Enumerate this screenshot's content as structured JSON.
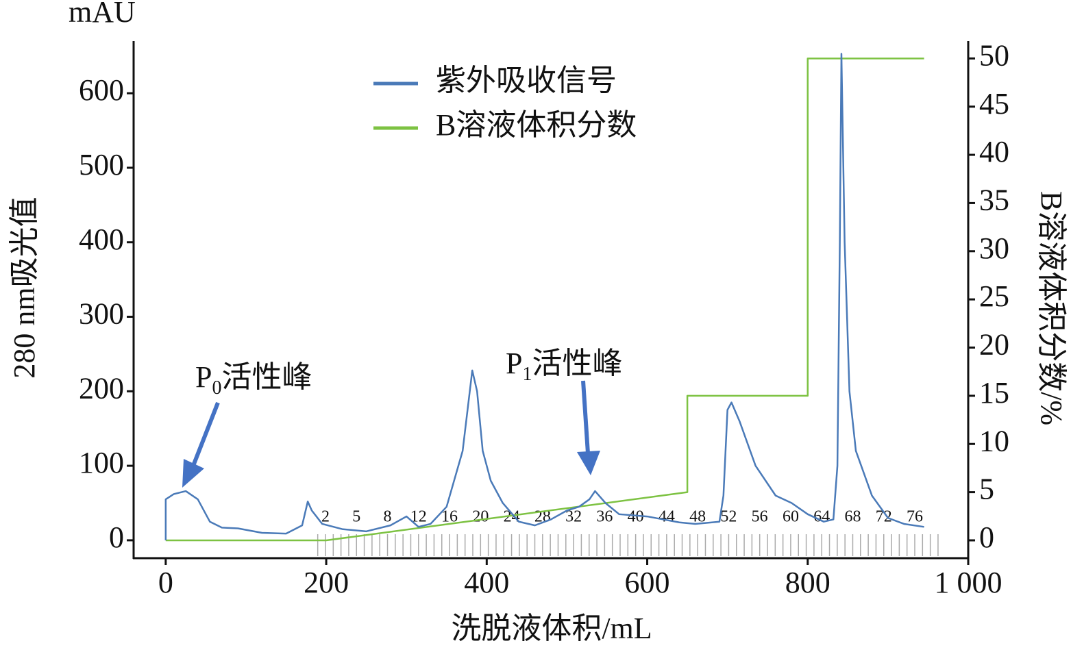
{
  "chart_data": {
    "type": "line",
    "y_unit": "mAU",
    "y_label": "280 nm吸光值",
    "y2_label": "B溶液体积分数/%",
    "x_label": "洗脱液体积/mL",
    "xlim": [
      -40,
      1000
    ],
    "ylim": [
      -24,
      670
    ],
    "y2lim": [
      -1.85,
      51.8
    ],
    "xticks": [
      0,
      200,
      400,
      600,
      800,
      {
        "value": 1000,
        "label": "1 000"
      }
    ],
    "yticks": [
      0,
      100,
      200,
      300,
      400,
      500,
      600
    ],
    "y2ticks": [
      0,
      5,
      10,
      15,
      20,
      25,
      30,
      35,
      40,
      45,
      50
    ],
    "series": [
      {
        "name": "紫外吸收信号",
        "color": "#4a7ab8",
        "x": [
          0,
          0,
          10,
          25,
          40,
          55,
          70,
          90,
          120,
          150,
          170,
          177,
          182,
          195,
          220,
          250,
          280,
          300,
          315,
          330,
          350,
          370,
          382,
          388,
          395,
          405,
          420,
          440,
          460,
          480,
          500,
          515,
          528,
          535,
          548,
          565,
          600,
          620,
          640,
          660,
          690,
          695,
          700,
          705,
          715,
          735,
          760,
          780,
          800,
          820,
          832,
          837,
          840,
          842,
          846,
          852,
          860,
          880,
          900,
          920,
          945
        ],
        "values": [
          0,
          55,
          62,
          66,
          55,
          25,
          17,
          16,
          10,
          9,
          20,
          52,
          40,
          22,
          15,
          12,
          20,
          32,
          18,
          22,
          45,
          120,
          228,
          200,
          120,
          80,
          50,
          25,
          20,
          28,
          40,
          45,
          55,
          66,
          50,
          35,
          32,
          28,
          24,
          22,
          25,
          60,
          175,
          185,
          160,
          100,
          60,
          50,
          35,
          25,
          28,
          100,
          400,
          653,
          400,
          200,
          120,
          60,
          30,
          22,
          18
        ]
      },
      {
        "name": "B溶液体积分数",
        "color": "#7dc242",
        "axis": "y2",
        "x": [
          0,
          200,
          650,
          650,
          800,
          800,
          945
        ],
        "values": [
          0,
          0,
          5,
          15,
          15,
          50,
          50
        ]
      }
    ],
    "fraction_labels": [
      "2",
      "5",
      "8",
      "12",
      "16",
      "20",
      "24",
      "28",
      "32",
      "36",
      "40",
      "44",
      "48",
      "52",
      "56",
      "60",
      "64",
      "68",
      "72",
      "76"
    ],
    "annotations": [
      {
        "main": "P",
        "sub": "0",
        "suffix": "活性峰"
      },
      {
        "main": "P",
        "sub": "1",
        "suffix": "活性峰"
      }
    ]
  }
}
